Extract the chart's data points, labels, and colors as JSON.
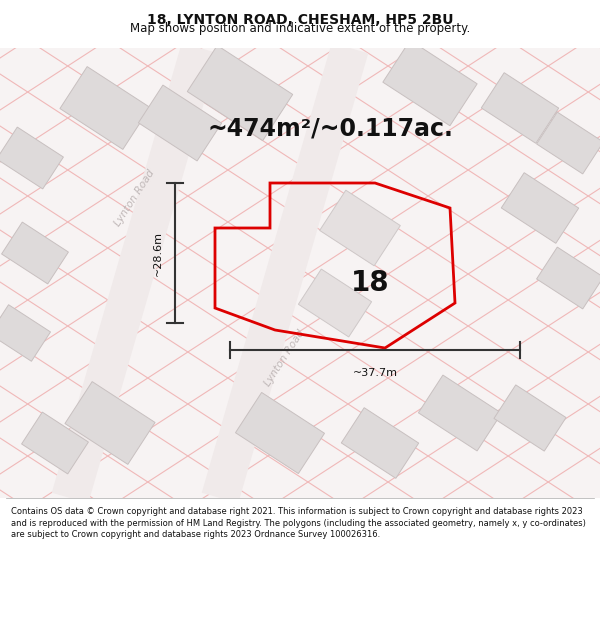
{
  "title_line1": "18, LYNTON ROAD, CHESHAM, HP5 2BU",
  "title_line2": "Map shows position and indicative extent of the property.",
  "area_text": "~474m²/~0.117ac.",
  "label_number": "18",
  "dim_vertical": "~28.6m",
  "dim_horizontal": "~37.7m",
  "road_label1": "Lynton Road",
  "road_label2": "Lynton Road",
  "footer_text": "Contains OS data © Crown copyright and database right 2021. This information is subject to Crown copyright and database rights 2023 and is reproduced with the permission of HM Land Registry. The polygons (including the associated geometry, namely x, y co-ordinates) are subject to Crown copyright and database rights 2023 Ordnance Survey 100026316.",
  "map_bg": "#f7f3f3",
  "plot_stroke": "#dd0000",
  "grid_line_color": "#f0b8b8",
  "building_fill": "#dedada",
  "building_stroke": "#c8c0c0",
  "dim_line_color": "#333333",
  "title_color": "#111111",
  "footer_color": "#111111",
  "road_label_color": "#c0b8b8",
  "title_fs": 10,
  "subtitle_fs": 8.5,
  "area_fs": 17,
  "label_fs": 20,
  "dim_fs": 8,
  "footer_fs": 6.0
}
